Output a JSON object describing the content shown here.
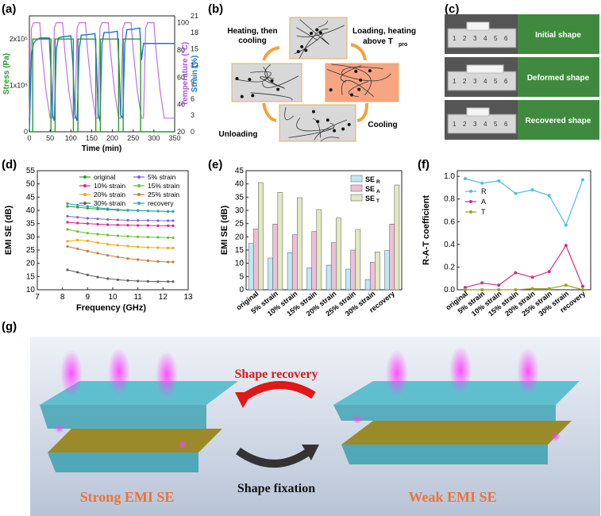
{
  "panels": {
    "a": {
      "label": "(a)",
      "chart_data": {
        "type": "line",
        "xlabel": "Time (min)",
        "ylabel_left": "Stress (Pa)",
        "ylabel_right_1": "Temperature (°C)",
        "ylabel_right_2": "Strain (%)",
        "xlim": [
          0,
          350
        ],
        "xticks": [
          "0",
          "50",
          "100",
          "150",
          "200",
          "250",
          "300",
          "350"
        ],
        "left_ticks": [
          "0",
          "1x10⁵",
          "2x10⁵"
        ],
        "temp_ticks": [
          "20",
          "40",
          "60",
          "80",
          "100"
        ],
        "strain_ticks": [
          "0",
          "3",
          "6",
          "9",
          "12",
          "15",
          "18",
          "21"
        ],
        "stress_points": [
          [
            0,
            0
          ],
          [
            8,
            0
          ],
          [
            8,
            2.0
          ],
          [
            52,
            2.0
          ],
          [
            52,
            0
          ],
          [
            62,
            0
          ],
          [
            62,
            2.0
          ],
          [
            106,
            2.0
          ],
          [
            106,
            0
          ],
          [
            117,
            0
          ],
          [
            117,
            2.0
          ],
          [
            160,
            2.0
          ],
          [
            160,
            0
          ],
          [
            171,
            0
          ],
          [
            171,
            2.0
          ],
          [
            215,
            2.0
          ],
          [
            215,
            0
          ],
          [
            226,
            0
          ],
          [
            226,
            2.0
          ],
          [
            268,
            2.0
          ],
          [
            268,
            0
          ],
          [
            350,
            0
          ]
        ],
        "temperature_points": [
          [
            0,
            30
          ],
          [
            5,
            96
          ],
          [
            10,
            100
          ],
          [
            15,
            100
          ],
          [
            25,
            100
          ],
          [
            30,
            80
          ],
          [
            40,
            50
          ],
          [
            50,
            30
          ],
          [
            55,
            30
          ],
          [
            60,
            96
          ],
          [
            65,
            100
          ],
          [
            80,
            100
          ],
          [
            85,
            80
          ],
          [
            95,
            50
          ],
          [
            105,
            30
          ],
          [
            110,
            30
          ],
          [
            115,
            96
          ],
          [
            120,
            100
          ],
          [
            135,
            100
          ],
          [
            140,
            80
          ],
          [
            150,
            50
          ],
          [
            160,
            30
          ],
          [
            165,
            30
          ],
          [
            170,
            96
          ],
          [
            175,
            100
          ],
          [
            190,
            100
          ],
          [
            195,
            80
          ],
          [
            205,
            50
          ],
          [
            215,
            30
          ],
          [
            220,
            30
          ],
          [
            225,
            96
          ],
          [
            230,
            100
          ],
          [
            245,
            100
          ],
          [
            250,
            80
          ],
          [
            260,
            50
          ],
          [
            270,
            30
          ],
          [
            275,
            30
          ],
          [
            280,
            96
          ],
          [
            285,
            100
          ],
          [
            300,
            100
          ],
          [
            305,
            80
          ],
          [
            315,
            50
          ],
          [
            325,
            30
          ],
          [
            350,
            30
          ]
        ],
        "strain_points": [
          [
            0,
            0
          ],
          [
            5,
            14
          ],
          [
            10,
            16
          ],
          [
            15,
            16.5
          ],
          [
            25,
            17
          ],
          [
            40,
            17
          ],
          [
            48,
            17
          ],
          [
            52,
            11
          ],
          [
            56,
            3
          ],
          [
            60,
            2
          ],
          [
            65,
            15
          ],
          [
            70,
            17
          ],
          [
            80,
            17.2
          ],
          [
            100,
            17.4
          ],
          [
            105,
            12
          ],
          [
            110,
            3
          ],
          [
            115,
            2
          ],
          [
            120,
            15
          ],
          [
            125,
            17.5
          ],
          [
            140,
            17.6
          ],
          [
            158,
            17.8
          ],
          [
            162,
            12
          ],
          [
            166,
            3
          ],
          [
            170,
            2
          ],
          [
            175,
            16
          ],
          [
            180,
            18
          ],
          [
            195,
            18
          ],
          [
            212,
            18.2
          ],
          [
            216,
            12
          ],
          [
            220,
            3
          ],
          [
            225,
            2.5
          ],
          [
            230,
            16
          ],
          [
            235,
            18.5
          ],
          [
            250,
            18.6
          ],
          [
            266,
            18.8
          ],
          [
            270,
            13
          ],
          [
            275,
            16
          ],
          [
            290,
            16
          ],
          [
            310,
            16
          ],
          [
            350,
            16
          ]
        ]
      }
    },
    "b": {
      "label": "(b)",
      "step1": "Heating, then",
      "step1b": "cooling",
      "step2": "Loading, heating",
      "step2b": "above T",
      "step2sub": "pro",
      "step3": "Unloading",
      "step4": "Cooling"
    },
    "c": {
      "label": "(c)",
      "shapes": [
        "Initial shape",
        "Deformed shape",
        "Recovered shape"
      ],
      "ruler_numbers": [
        "1",
        "2",
        "3",
        "4",
        "5",
        "6"
      ]
    },
    "d": {
      "label": "(d)",
      "chart_data": {
        "type": "line",
        "xlabel": "Frequency (GHz)",
        "ylabel": "EMI SE (dB)",
        "xlim": [
          7,
          13
        ],
        "ylim": [
          10,
          55
        ],
        "xticks": [
          "7",
          "8",
          "9",
          "10",
          "11",
          "12",
          "13"
        ],
        "yticks": [
          "10",
          "15",
          "20",
          "25",
          "30",
          "35",
          "40",
          "45",
          "50",
          "55"
        ],
        "x": [
          8.2,
          8.6,
          9.0,
          9.4,
          9.8,
          10.2,
          10.6,
          11.0,
          11.4,
          11.8,
          12.2,
          12.4
        ],
        "series": [
          {
            "name": "original",
            "color": "#2ca02c",
            "values": [
              41.5,
              41.2,
              40.8,
              40.5,
              40.3,
              40.1,
              40.0,
              39.9,
              39.8,
              39.7,
              39.6,
              39.6
            ]
          },
          {
            "name": "5% strain",
            "color": "#7b68c8",
            "values": [
              37.8,
              37.4,
              37.0,
              36.8,
              36.6,
              36.4,
              36.3,
              36.2,
              36.2,
              36.1,
              36.1,
              36.1
            ]
          },
          {
            "name": "10% strain",
            "color": "#e0208c",
            "values": [
              35.5,
              35.2,
              35.0,
              34.8,
              34.6,
              34.5,
              34.4,
              34.3,
              34.3,
              34.2,
              34.2,
              34.2
            ]
          },
          {
            "name": "15% strain",
            "color": "#6abf2e",
            "values": [
              32.8,
              32.0,
              31.4,
              31.0,
              30.7,
              30.4,
              30.2,
              30.0,
              29.9,
              29.8,
              29.7,
              29.7
            ]
          },
          {
            "name": "20% strain",
            "color": "#f0a800",
            "values": [
              28.3,
              28.8,
              28.5,
              27.8,
              27.2,
              26.8,
              26.5,
              26.2,
              26.0,
              25.9,
              25.8,
              25.8
            ]
          },
          {
            "name": "25% strain",
            "color": "#c8783c",
            "values": [
              26.4,
              25.5,
              24.6,
              23.8,
              23.0,
              22.4,
              21.8,
              21.4,
              21.0,
              20.7,
              20.5,
              20.5
            ]
          },
          {
            "name": "30% strain",
            "color": "#606060",
            "values": [
              17.5,
              16.6,
              15.6,
              14.8,
              14.2,
              13.8,
              13.5,
              13.3,
              13.2,
              13.1,
              13.1,
              13.1
            ]
          },
          {
            "name": "recovery",
            "color": "#2aa6b8",
            "values": [
              42.6,
              42.0,
              41.5,
              41.0,
              40.6,
              40.3,
              40.1,
              40.0,
              39.8,
              39.7,
              39.6,
              39.6
            ]
          }
        ]
      }
    },
    "e": {
      "label": "(e)",
      "chart_data": {
        "type": "bar",
        "ylabel": "EMI SE (dB)",
        "ylim": [
          0,
          45
        ],
        "yticks": [
          "0",
          "5",
          "10",
          "15",
          "20",
          "25",
          "30",
          "35",
          "40",
          "45"
        ],
        "categories": [
          "original",
          "5% strain",
          "10% strain",
          "15% strain",
          "20% strain",
          "25% strain",
          "30% strain",
          "recovery"
        ],
        "series": [
          {
            "name": "SE",
            "sub": "R",
            "color": "#bfe8f5",
            "values": [
              17.5,
              12.0,
              14.0,
              8.3,
              9.3,
              7.8,
              3.9,
              14.8
            ]
          },
          {
            "name": "SE",
            "sub": "A",
            "color": "#ecc0d8",
            "values": [
              23.0,
              24.8,
              20.8,
              22.0,
              17.8,
              15.0,
              10.4,
              24.8
            ]
          },
          {
            "name": "SE",
            "sub": "T",
            "color": "#e2e8c0",
            "values": [
              40.5,
              36.8,
              34.8,
              30.3,
              27.1,
              22.8,
              14.3,
              39.6
            ]
          }
        ]
      }
    },
    "f": {
      "label": "(f)",
      "chart_data": {
        "type": "line",
        "ylabel": "R-A-T coefficient",
        "ylim": [
          0,
          1.0
        ],
        "yticks": [
          "0.0",
          "0.2",
          "0.4",
          "0.6",
          "0.8",
          "1.0"
        ],
        "categories": [
          "original",
          "5% strain",
          "10% strain",
          "15% strain",
          "20% strain",
          "25% strain",
          "30% strain",
          "recovery"
        ],
        "series": [
          {
            "name": "R",
            "color": "#4fc1d0",
            "values": [
              0.98,
              0.94,
              0.96,
              0.85,
              0.88,
              0.83,
              0.57,
              0.97
            ]
          },
          {
            "name": "A",
            "color": "#d0307e",
            "values": [
              0.02,
              0.06,
              0.04,
              0.15,
              0.11,
              0.16,
              0.39,
              0.03
            ]
          },
          {
            "name": "T",
            "color": "#9aa020",
            "values": [
              0.0,
              0.0,
              0.0,
              0.0,
              0.01,
              0.01,
              0.04,
              0.0
            ]
          }
        ]
      }
    },
    "g": {
      "label": "(g)",
      "shape_recovery": "Shape recovery",
      "shape_fixation": "Shape fixation",
      "strong": "Strong EMI SE",
      "weak": "Weak  EMI SE"
    }
  }
}
